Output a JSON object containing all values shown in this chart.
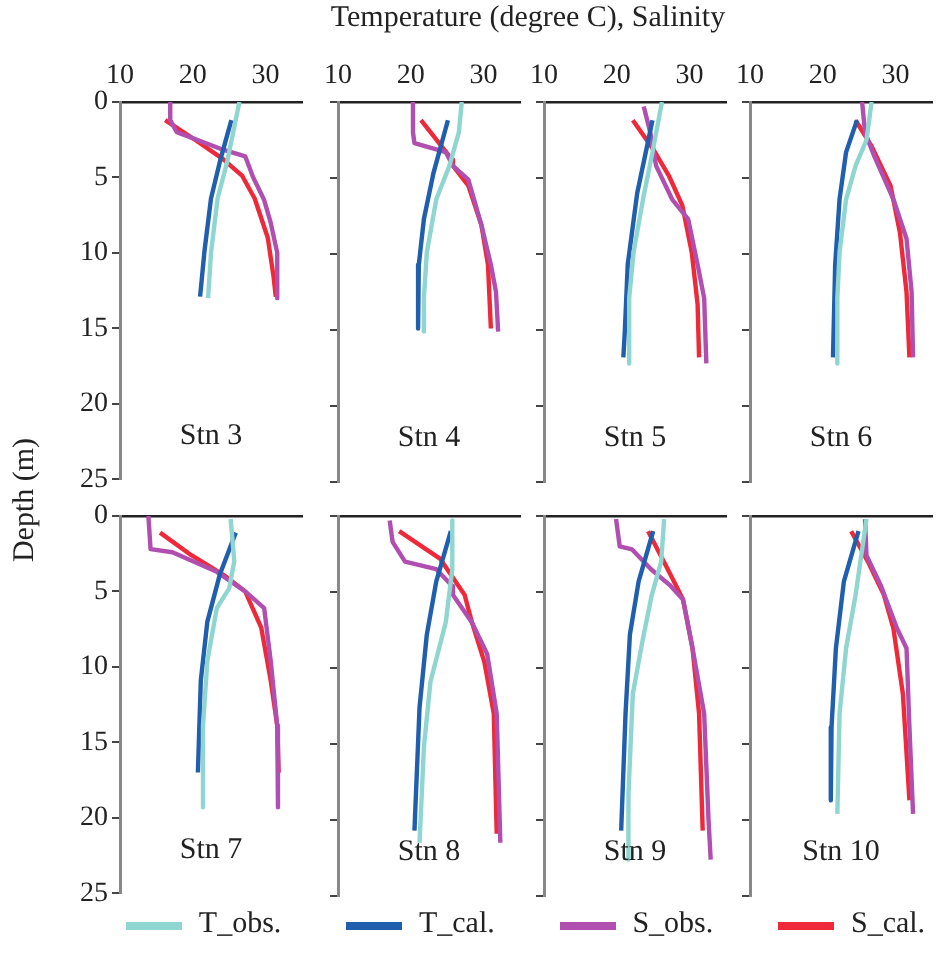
{
  "chart_data": [
    {
      "type": "line",
      "xlabel": "Temperature (degree C), Salinity",
      "ylabel": "Depth (m)",
      "legend": "bottom",
      "annotations": [
        "Stn 3"
      ],
      "xlim": [
        10,
        35
      ],
      "xticks": [
        10,
        20,
        30
      ],
      "ylim": [
        25,
        0
      ],
      "yticks": [
        0,
        5,
        10,
        15,
        20,
        25
      ],
      "series": [
        {
          "name": "T_obs.",
          "color": "#8fd6d0",
          "x": [
            26.4,
            24.7,
            23.4,
            22.5,
            22.1
          ],
          "values": [
            0,
            4,
            6.4,
            10,
            13
          ]
        },
        {
          "name": "T_cal.",
          "color": "#1f5fad",
          "x": [
            25.3,
            23.8,
            22.5,
            21.6,
            21.0
          ],
          "values": [
            1.2,
            3.8,
            6.4,
            9.9,
            12.9
          ]
        },
        {
          "name": "S_obs.",
          "color": "#b04fb0",
          "x": [
            16.9,
            16.9,
            17.8,
            23.8,
            27.2,
            28.3,
            29.8,
            30.7,
            31.6,
            31.6
          ],
          "values": [
            0,
            1.2,
            2,
            3.1,
            3.6,
            5,
            6.5,
            8,
            10,
            13
          ]
        },
        {
          "name": "S_cal.",
          "color": "#ee2a3a",
          "x": [
            16.2,
            20.3,
            24.2,
            26.8,
            28.5,
            30.3,
            31.1,
            31.4
          ],
          "values": [
            1.2,
            2.5,
            3.8,
            4.9,
            6.4,
            9,
            11.6,
            12.9
          ]
        }
      ]
    },
    {
      "type": "line",
      "annotations": [
        "Stn 4"
      ],
      "xlim": [
        10,
        35
      ],
      "xticks": [
        10,
        20,
        30
      ],
      "ylim": [
        25,
        0
      ],
      "yticks": [
        0,
        5,
        10,
        15,
        20,
        25
      ],
      "tick_labels": "x",
      "series": [
        {
          "color": "#8fd6d0",
          "x": [
            27,
            26.6,
            25.3,
            23.5,
            22.2,
            21.8,
            21.8
          ],
          "values": [
            0,
            2,
            4.2,
            6.4,
            9.9,
            12.9,
            15.1
          ]
        },
        {
          "color": "#1f5fad",
          "x": [
            25.1,
            23.1,
            21.8,
            21.1,
            21
          ],
          "values": [
            1.2,
            4.7,
            7.7,
            10.7,
            14.9
          ]
        },
        {
          "color": "#b04fb0",
          "x": [
            20.3,
            20.3,
            20.5,
            24.8,
            25.8,
            27.9,
            29.7,
            31,
            31.7,
            32
          ],
          "values": [
            0,
            2,
            2.7,
            3.3,
            4.2,
            5.1,
            8.1,
            10.7,
            12.5,
            15.1
          ]
        },
        {
          "color": "#ee2a3a",
          "x": [
            21.4,
            25.7,
            25.8,
            27.9,
            29.7,
            30.6,
            31
          ],
          "values": [
            1.2,
            3.8,
            4.2,
            5.5,
            8.1,
            10.7,
            14.9
          ]
        }
      ]
    },
    {
      "type": "line",
      "annotations": [
        "Stn 5"
      ],
      "xlim": [
        10,
        35
      ],
      "xticks": [
        10,
        20,
        30
      ],
      "ylim": [
        25,
        0
      ],
      "yticks": [
        0,
        5,
        10,
        15,
        20,
        25
      ],
      "tick_labels": "x",
      "series": [
        {
          "color": "#8fd6d0",
          "x": [
            26.2,
            24.9,
            23.6,
            22.3,
            21.7,
            21.7
          ],
          "values": [
            0,
            3.3,
            6.4,
            9.9,
            12.9,
            17.2
          ]
        },
        {
          "color": "#1f5fad",
          "x": [
            24.9,
            22.8,
            21.5,
            21.1,
            20.9
          ],
          "values": [
            1.2,
            6,
            10.7,
            15.1,
            16.8
          ]
        },
        {
          "color": "#b04fb0",
          "x": [
            23.7,
            24.6,
            25.4,
            27.6,
            29.8,
            31.1,
            32,
            32.3
          ],
          "values": [
            0.3,
            2,
            4.2,
            6.4,
            7.7,
            10.7,
            12.9,
            17.2
          ]
        },
        {
          "color": "#ee2a3a",
          "x": [
            22.2,
            25,
            27.2,
            29,
            30.3,
            31.1,
            31.3
          ],
          "values": [
            1.2,
            3.1,
            4.9,
            6.8,
            9.9,
            13.3,
            16.8
          ]
        }
      ]
    },
    {
      "type": "line",
      "annotations": [
        "Stn 6"
      ],
      "xlim": [
        10,
        35
      ],
      "xticks": [
        10,
        20,
        30
      ],
      "ylim": [
        25,
        0
      ],
      "yticks": [
        0,
        5,
        10,
        15,
        20,
        25
      ],
      "tick_labels": "x",
      "series": [
        {
          "color": "#8fd6d0",
          "x": [
            26.7,
            26,
            24.5,
            23.2,
            22.3,
            22,
            22
          ],
          "values": [
            0,
            2.5,
            4.2,
            6.4,
            9.9,
            12.9,
            17.2
          ]
        },
        {
          "color": "#1f5fad",
          "x": [
            24.7,
            23.2,
            22.3,
            21.7,
            21.4
          ],
          "values": [
            1.2,
            3.3,
            6.4,
            10.7,
            16.8
          ]
        },
        {
          "color": "#b04fb0",
          "x": [
            25.4,
            25.8,
            27.1,
            29.7,
            31.5,
            32.2,
            32.4
          ],
          "values": [
            0,
            2,
            3.6,
            6.4,
            9,
            12.5,
            16.8
          ]
        },
        {
          "color": "#ee2a3a",
          "x": [
            24.5,
            26.7,
            29.3,
            30.6,
            31.5,
            31.9
          ],
          "values": [
            1.2,
            2.9,
            5.5,
            8.6,
            12.5,
            16.8
          ]
        }
      ]
    },
    {
      "type": "line",
      "annotations": [
        "Stn 7"
      ],
      "xlim": [
        10,
        35
      ],
      "xticks": [
        10,
        20,
        30
      ],
      "ylim": [
        25,
        0
      ],
      "yticks": [
        0,
        5,
        10,
        15,
        20,
        25
      ],
      "tick_labels": "y",
      "series": [
        {
          "color": "#8fd6d0",
          "x": [
            25.2,
            25.7,
            25,
            23.3,
            22,
            21.4,
            21.4
          ],
          "values": [
            0.2,
            3,
            4.8,
            6.1,
            9.6,
            13.9,
            19.3
          ]
        },
        {
          "color": "#1f5fad",
          "x": [
            25.9,
            23.7,
            22,
            21.1,
            20.7
          ],
          "values": [
            1.1,
            3.9,
            7,
            10.9,
            17
          ]
        },
        {
          "color": "#b04fb0",
          "x": [
            13.9,
            14.2,
            17.2,
            23.3,
            27.2,
            29.8,
            30.7,
            31.6,
            31.7
          ],
          "values": [
            0,
            2.2,
            2.4,
            3.7,
            5,
            6.1,
            9.6,
            13.9,
            19.3
          ]
        },
        {
          "color": "#ee2a3a",
          "x": [
            15.5,
            19.8,
            24.2,
            27.2,
            29.4,
            30.7,
            31.6,
            31.8
          ],
          "values": [
            1.1,
            2.6,
            3.9,
            5,
            7.4,
            10.9,
            13.9,
            17
          ]
        }
      ]
    },
    {
      "type": "line",
      "annotations": [
        "Stn 8"
      ],
      "xlim": [
        10,
        35
      ],
      "xticks": [
        10,
        20,
        30
      ],
      "ylim": [
        25,
        0
      ],
      "yticks": [
        0,
        5,
        10,
        15,
        20,
        25
      ],
      "tick_labels": false,
      "series": [
        {
          "color": "#8fd6d0",
          "x": [
            25.7,
            25.7,
            24.8,
            22.7,
            21.8,
            21.2
          ],
          "values": [
            0.3,
            3.5,
            7,
            10.9,
            15.2,
            21.5
          ]
        },
        {
          "color": "#1f5fad",
          "x": [
            25.5,
            23.5,
            22.2,
            21.2,
            20.5
          ],
          "values": [
            1,
            4.3,
            7.8,
            12.6,
            20.7
          ]
        },
        {
          "color": "#b04fb0",
          "x": [
            17.1,
            17.5,
            19.2,
            23.5,
            25.7,
            25.8,
            28.4,
            30.5,
            31.8,
            32.3
          ],
          "values": [
            0.3,
            1.7,
            3,
            3.5,
            4.6,
            5.2,
            7,
            9.1,
            13,
            21.5
          ]
        },
        {
          "color": "#ee2a3a",
          "x": [
            18.4,
            24,
            27.4,
            28.4,
            30.1,
            31.4,
            31.8
          ],
          "values": [
            1,
            2.8,
            5.2,
            7,
            9.6,
            13,
            20.9
          ]
        }
      ]
    },
    {
      "type": "line",
      "annotations": [
        "Stn 9"
      ],
      "xlim": [
        10,
        35
      ],
      "xticks": [
        10,
        20,
        30
      ],
      "ylim": [
        25,
        0
      ],
      "yticks": [
        0,
        5,
        10,
        15,
        20,
        25
      ],
      "tick_labels": false,
      "series": [
        {
          "color": "#8fd6d0",
          "x": [
            26.5,
            26.1,
            24.8,
            23.5,
            22.2,
            21.6,
            21.6
          ],
          "values": [
            0.2,
            3,
            5.2,
            8.3,
            11.7,
            18.3,
            22.6
          ]
        },
        {
          "color": "#1f5fad",
          "x": [
            25,
            23,
            21.8,
            21.2,
            20.6
          ],
          "values": [
            1,
            4.3,
            7.8,
            13,
            20.7
          ]
        },
        {
          "color": "#b04fb0",
          "x": [
            19.9,
            20.4,
            22.1,
            24.7,
            27.4,
            29.1,
            30.4,
            32,
            32.6,
            32.9
          ],
          "values": [
            0.2,
            2,
            2.2,
            3.5,
            4.6,
            5.5,
            8.7,
            13,
            20,
            22.6
          ]
        },
        {
          "color": "#ee2a3a",
          "x": [
            24.3,
            27,
            29.1,
            30.4,
            31.3,
            31.8
          ],
          "values": [
            1,
            3.5,
            5.5,
            8.7,
            13,
            20.7
          ]
        }
      ]
    },
    {
      "type": "line",
      "annotations": [
        "Stn 10"
      ],
      "xlim": [
        10,
        35
      ],
      "xticks": [
        10,
        20,
        30
      ],
      "ylim": [
        25,
        0
      ],
      "yticks": [
        0,
        5,
        10,
        15,
        20,
        25
      ],
      "tick_labels": false,
      "series": [
        {
          "color": "#8fd6d0",
          "x": [
            26,
            25.4,
            24.5,
            23.2,
            22.3,
            22
          ],
          "values": [
            0.2,
            2.2,
            5.2,
            8.7,
            13,
            19.6
          ]
        },
        {
          "color": "#1f5fad",
          "x": [
            24.9,
            22.9,
            21.8,
            21.2,
            21.1
          ],
          "values": [
            1,
            4.3,
            8.7,
            13.9,
            18.7
          ]
        },
        {
          "color": "#b04fb0",
          "x": [
            25.8,
            26,
            28,
            30.2,
            31.5,
            31.9,
            32.4
          ],
          "values": [
            0.2,
            2.6,
            4.6,
            7.4,
            8.7,
            13.9,
            19.6
          ]
        },
        {
          "color": "#ee2a3a",
          "x": [
            23.9,
            26.2,
            28.4,
            29.7,
            31,
            31.9
          ],
          "values": [
            1,
            3,
            5.2,
            7.4,
            11.7,
            18.7
          ]
        }
      ]
    }
  ]
}
